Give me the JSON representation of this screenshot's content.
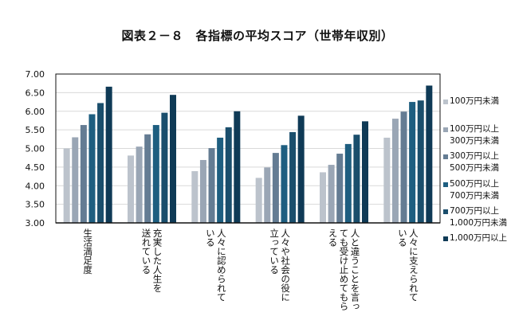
{
  "title": "図表２－８　各指標の平均スコア（世帯年収別）",
  "chart_data": {
    "type": "bar",
    "title": "図表２－８　各指標の平均スコア（世帯年収別）",
    "ylim": [
      3.0,
      7.0
    ],
    "yticks": [
      "7.00",
      "6.50",
      "6.00",
      "5.50",
      "5.00",
      "4.50",
      "4.00",
      "3.50",
      "3.00"
    ],
    "grid": true,
    "legend_position": "right",
    "categories": [
      "生活満足度",
      "充実した人生を\n送れている",
      "人々に認められて\nいる",
      "人々や社会の役に\n立っている",
      "人と違うことを言っ\nても受け止めてもら\nえる",
      "人々に支えられて\nいる"
    ],
    "series": [
      {
        "name": "100万円未満",
        "color": "#bcc3cc",
        "values": [
          5.0,
          4.81,
          4.39,
          4.21,
          4.36,
          5.29
        ]
      },
      {
        "name": "100万円以上\n300万円未満",
        "color": "#9aa6b5",
        "values": [
          5.3,
          5.05,
          4.69,
          4.49,
          4.56,
          5.8
        ]
      },
      {
        "name": "300万円以上\n500万円未満",
        "color": "#647c93",
        "values": [
          5.63,
          5.38,
          5.01,
          4.88,
          4.86,
          5.99
        ]
      },
      {
        "name": "500万円以上\n700万円未満",
        "color": "#1e5e80",
        "values": [
          5.92,
          5.63,
          5.29,
          5.09,
          5.12,
          6.25
        ]
      },
      {
        "name": "700万円以上\n1,000万円未満",
        "color": "#1a4e6c",
        "values": [
          6.22,
          5.96,
          5.57,
          5.44,
          5.37,
          6.29
        ]
      },
      {
        "name": "1,000万円以上",
        "color": "#0f3a56",
        "values": [
          6.66,
          6.44,
          6.0,
          5.88,
          5.73,
          6.69
        ]
      }
    ]
  }
}
